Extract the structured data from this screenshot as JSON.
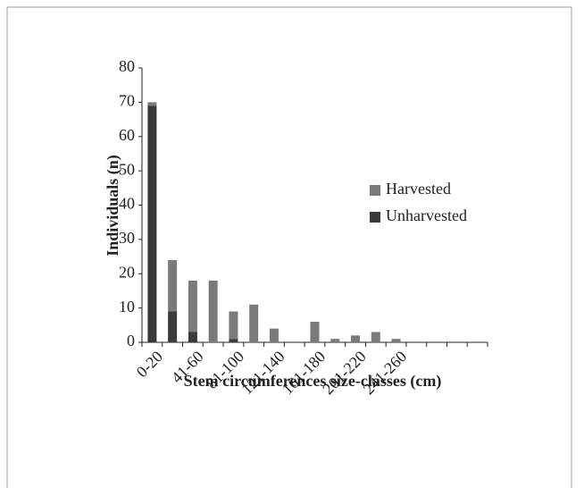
{
  "chart_data": {
    "type": "stacked_bar",
    "x_label": "Stem circumferences size-classes (cm)",
    "y_label": "Individuals (n)",
    "categories": [
      "0-20",
      null,
      "41-60",
      null,
      "81-100",
      null,
      "121-140",
      null,
      "161-180",
      null,
      "201-220",
      null,
      "241-260",
      null,
      null,
      null,
      null
    ],
    "series": [
      {
        "name": "Unharvested",
        "color": "#3a3a3a",
        "values": [
          69,
          9,
          3,
          0,
          1,
          0,
          0,
          0,
          0,
          0,
          0,
          0,
          0,
          0,
          0,
          0,
          0
        ]
      },
      {
        "name": "Harvested",
        "color": "#7a7a7a",
        "values": [
          1,
          15,
          15,
          18,
          8,
          11,
          4,
          0,
          6,
          1,
          2,
          3,
          1,
          0,
          0,
          0,
          0
        ]
      }
    ],
    "ylim": [
      0,
      80
    ],
    "yticks": [
      0,
      10,
      20,
      30,
      40,
      50,
      60,
      70,
      80
    ]
  }
}
